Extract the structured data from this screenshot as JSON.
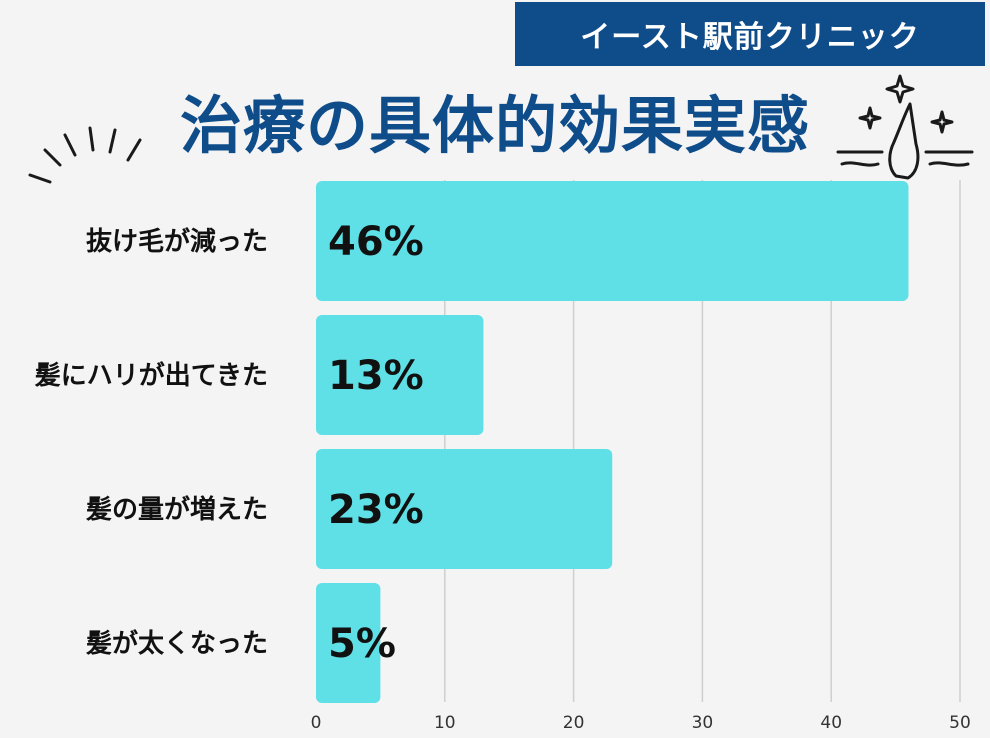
{
  "header": {
    "clinic_name": "イースト駅前クリニック",
    "title": "治療の具体的効果実感"
  },
  "colors": {
    "brand": "#0f4c8a",
    "bar": "#5ee0e6",
    "grid": "#cfcfcf",
    "label": "#111111",
    "background": "#f4f4f4"
  },
  "icons": [
    "burst-lines-icon",
    "hair-follicle-sparkle-icon"
  ],
  "chart_data": {
    "type": "bar",
    "orientation": "horizontal",
    "title": "治療の具体的効果実感",
    "categories": [
      "抜け毛が減った",
      "髪にハリが出てきた",
      "髪の量が増えた",
      "髪が太くなった"
    ],
    "values": [
      46,
      13,
      23,
      5
    ],
    "value_labels": [
      "46%",
      "13%",
      "23%",
      "5%"
    ],
    "xlim": [
      0,
      50
    ],
    "xticks": [
      0,
      10,
      20,
      30,
      40,
      50
    ],
    "grid": true,
    "xlabel": "",
    "ylabel": ""
  }
}
